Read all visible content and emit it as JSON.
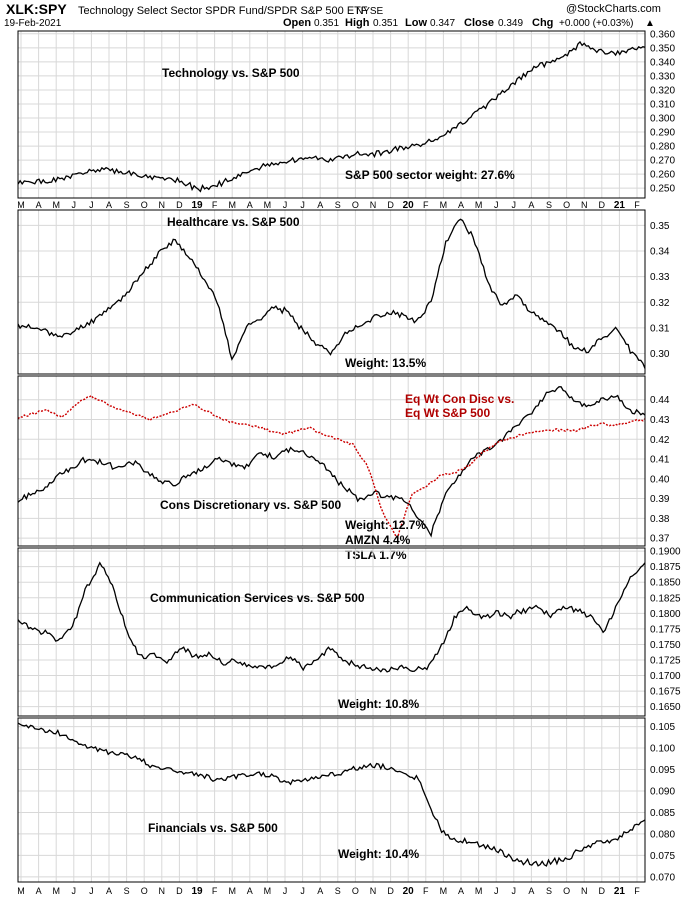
{
  "header": {
    "ticker": "XLK:SPY",
    "description": "Technology Select Sector SPDR Fund/SPDR S&P 500 ETF",
    "exchange": "NYSE",
    "date": "19-Feb-2021",
    "watermark": "@StockCharts.com",
    "open_label": "Open",
    "open": "0.351",
    "high_label": "High",
    "high": "0.351",
    "low_label": "Low",
    "low": "0.347",
    "close_label": "Close",
    "close": "0.349",
    "chg_label": "Chg",
    "chg": "+0.000 (+0.03%)",
    "chg_marker": "▲"
  },
  "x_axis": {
    "month_ticks": [
      "M",
      "A",
      "M",
      "J",
      "J",
      "A",
      "S",
      "O",
      "N",
      "D",
      "19",
      "F",
      "M",
      "A",
      "M",
      "J",
      "J",
      "A",
      "S",
      "O",
      "N",
      "D",
      "20",
      "F",
      "M",
      "A",
      "M",
      "J",
      "J",
      "A",
      "S",
      "O",
      "N",
      "D",
      "21",
      "F"
    ],
    "year_ticks": [
      "19",
      "20",
      "21"
    ]
  },
  "chart_data": [
    {
      "type": "line",
      "title": "Technology vs. S&P 500",
      "annotation": "S&P 500 sector weight: 27.6%",
      "ylim": [
        0.243,
        0.362
      ],
      "yticks": [
        "0.360",
        "0.350",
        "0.340",
        "0.330",
        "0.320",
        "0.310",
        "0.300",
        "0.290",
        "0.280",
        "0.270",
        "0.260",
        "0.250"
      ],
      "series": [
        {
          "values": [
            0.253,
            0.255,
            0.254,
            0.256,
            0.258,
            0.261,
            0.262,
            0.263,
            0.262,
            0.26,
            0.258,
            0.257,
            0.256,
            0.252,
            0.25,
            0.251,
            0.255,
            0.259,
            0.263,
            0.266,
            0.268,
            0.27,
            0.272,
            0.271,
            0.27,
            0.272,
            0.275,
            0.274,
            0.276,
            0.278,
            0.28,
            0.282,
            0.285,
            0.29,
            0.296,
            0.303,
            0.31,
            0.318,
            0.325,
            0.332,
            0.338,
            0.34,
            0.345,
            0.352,
            0.35,
            0.346,
            0.346,
            0.35,
            0.349
          ]
        }
      ]
    },
    {
      "type": "line",
      "title": "Healthcare vs. S&P 500",
      "annotation": "Weight: 13.5%",
      "ylim": [
        0.292,
        0.356
      ],
      "yticks": [
        "0.35",
        "0.34",
        "0.33",
        "0.32",
        "0.31",
        "0.30"
      ],
      "series": [
        {
          "values": [
            0.311,
            0.31,
            0.309,
            0.306,
            0.309,
            0.312,
            0.316,
            0.32,
            0.326,
            0.333,
            0.34,
            0.344,
            0.338,
            0.33,
            0.32,
            0.298,
            0.31,
            0.314,
            0.318,
            0.316,
            0.309,
            0.304,
            0.3,
            0.308,
            0.311,
            0.314,
            0.316,
            0.315,
            0.312,
            0.32,
            0.343,
            0.353,
            0.345,
            0.327,
            0.319,
            0.323,
            0.316,
            0.312,
            0.309,
            0.302,
            0.301,
            0.306,
            0.31,
            0.301,
            0.295
          ]
        }
      ]
    },
    {
      "type": "line",
      "title": "Cons Discretionary vs. S&P 500",
      "annotations": [
        "Weight: 12.7%",
        "AMZN 4.4%",
        "TSLA 1.7%"
      ],
      "red_label_lines": [
        "Eq Wt Con Disc vs.",
        "Eq Wt S&P 500"
      ],
      "ylim": [
        0.366,
        0.452
      ],
      "yticks": [
        "0.44",
        "0.43",
        "0.42",
        "0.41",
        "0.40",
        "0.39",
        "0.38",
        "0.37"
      ],
      "series": [
        {
          "values": [
            0.389,
            0.392,
            0.396,
            0.402,
            0.407,
            0.411,
            0.408,
            0.405,
            0.409,
            0.404,
            0.399,
            0.397,
            0.402,
            0.405,
            0.41,
            0.408,
            0.406,
            0.413,
            0.411,
            0.415,
            0.413,
            0.41,
            0.402,
            0.395,
            0.389,
            0.393,
            0.391,
            0.39,
            0.381,
            0.372,
            0.393,
            0.402,
            0.411,
            0.415,
            0.42,
            0.428,
            0.433,
            0.442,
            0.446,
            0.44,
            0.436,
            0.44,
            0.442,
            0.434,
            0.432
          ]
        },
        {
          "values": [
            0.431,
            0.433,
            0.435,
            0.431,
            0.438,
            0.442,
            0.438,
            0.435,
            0.433,
            0.43,
            0.432,
            0.435,
            0.438,
            0.434,
            0.43,
            0.428,
            0.427,
            0.425,
            0.423,
            0.424,
            0.426,
            0.422,
            0.42,
            0.417,
            0.406,
            0.383,
            0.37,
            0.392,
            0.396,
            0.402,
            0.403,
            0.407,
            0.414,
            0.419,
            0.421,
            0.423,
            0.424,
            0.425,
            0.424,
            0.426,
            0.428,
            0.427,
            0.429,
            0.43
          ]
        }
      ]
    },
    {
      "type": "line",
      "title": "Communication Services vs. S&P 500",
      "annotation": "Weight: 10.8%",
      "ylim": [
        0.1635,
        0.1905
      ],
      "yticks": [
        "0.1900",
        "0.1875",
        "0.1850",
        "0.1825",
        "0.1800",
        "0.1775",
        "0.1750",
        "0.1725",
        "0.1700",
        "0.1675",
        "0.1650"
      ],
      "series": [
        {
          "values": [
            0.179,
            0.1775,
            0.177,
            0.1755,
            0.1778,
            0.184,
            0.188,
            0.184,
            0.177,
            0.173,
            0.1735,
            0.172,
            0.1745,
            0.173,
            0.1735,
            0.172,
            0.1725,
            0.1715,
            0.1712,
            0.1715,
            0.1732,
            0.1712,
            0.1728,
            0.1745,
            0.1722,
            0.1715,
            0.171,
            0.1708,
            0.1715,
            0.1708,
            0.1712,
            0.1745,
            0.179,
            0.181,
            0.179,
            0.18,
            0.1795,
            0.1805,
            0.181,
            0.1795,
            0.181,
            0.1805,
            0.1795,
            0.177,
            0.1815,
            0.186,
            0.188
          ]
        }
      ]
    },
    {
      "type": "line",
      "title": "Financials vs. S&P 500",
      "annotation": "Weight: 10.4%",
      "ylim": [
        0.0688,
        0.107
      ],
      "yticks": [
        "0.105",
        "0.100",
        "0.095",
        "0.090",
        "0.085",
        "0.080",
        "0.075",
        "0.070"
      ],
      "series": [
        {
          "values": [
            0.1055,
            0.105,
            0.104,
            0.1035,
            0.102,
            0.1005,
            0.0995,
            0.099,
            0.0985,
            0.0975,
            0.096,
            0.095,
            0.0945,
            0.094,
            0.0935,
            0.0925,
            0.093,
            0.0935,
            0.094,
            0.0935,
            0.092,
            0.0925,
            0.093,
            0.0935,
            0.094,
            0.095,
            0.0955,
            0.096,
            0.095,
            0.0935,
            0.093,
            0.085,
            0.0795,
            0.0785,
            0.078,
            0.077,
            0.076,
            0.0745,
            0.0735,
            0.073,
            0.0735,
            0.074,
            0.076,
            0.0775,
            0.078,
            0.079,
            0.0815,
            0.083
          ]
        }
      ]
    }
  ]
}
